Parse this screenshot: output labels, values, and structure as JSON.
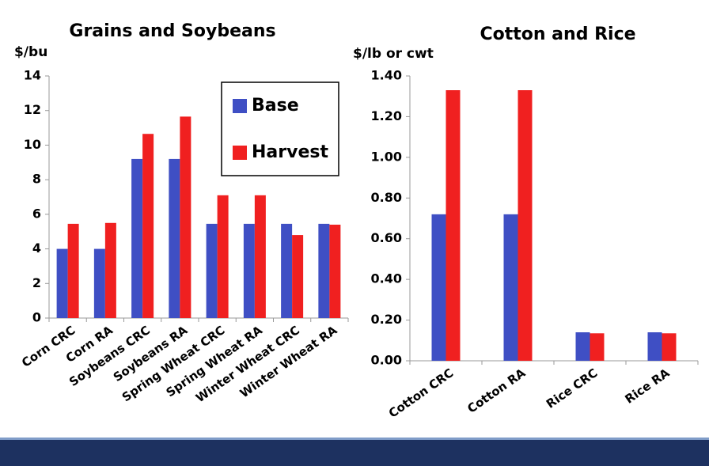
{
  "chart_data": [
    {
      "type": "bar",
      "title": "Grains and Soybeans",
      "y_label": "$/bu",
      "categories": [
        "Corn CRC",
        "Corn RA",
        "Soybeans CRC",
        "Soybeans RA",
        "Spring Wheat CRC",
        "Spring Wheat RA",
        "Winter Wheat CRC",
        "Winter Wheat RA"
      ],
      "series": [
        {
          "name": "Base",
          "color": "#3f4fc4",
          "values": [
            4.0,
            4.0,
            9.2,
            9.2,
            5.45,
            5.45,
            5.45,
            5.45
          ]
        },
        {
          "name": "Harvest",
          "color": "#f02020",
          "values": [
            5.45,
            5.5,
            10.65,
            11.65,
            7.1,
            7.1,
            4.8,
            5.4
          ]
        }
      ],
      "ylim": [
        0,
        14
      ],
      "yticks": [
        0,
        2,
        4,
        6,
        8,
        10,
        12,
        14
      ],
      "grid": false,
      "legend": "upper right"
    },
    {
      "type": "bar",
      "title": "Cotton and Rice",
      "y_label": "$/lb or cwt",
      "categories": [
        "Cotton CRC",
        "Cotton RA",
        "Rice CRC",
        "Rice RA"
      ],
      "series": [
        {
          "color": "#3f4fc4",
          "values": [
            0.72,
            0.72,
            0.14,
            0.14
          ]
        },
        {
          "color": "#f02020",
          "values": [
            1.33,
            1.33,
            0.135,
            0.135
          ]
        }
      ],
      "ylim": [
        0,
        1.4
      ],
      "yticks": [
        {
          "value": 0,
          "label": "0.00"
        },
        {
          "value": 0.2,
          "label": "0.20"
        },
        {
          "value": 0.4,
          "label": "0.40"
        },
        {
          "value": 0.6,
          "label": "0.60"
        },
        {
          "value": 0.8,
          "label": "0.80"
        },
        {
          "value": 1.0,
          "label": "1.00"
        },
        {
          "value": 1.2,
          "label": "1.20"
        },
        {
          "value": 1.4,
          "label": "1.40"
        }
      ],
      "grid": false
    }
  ]
}
